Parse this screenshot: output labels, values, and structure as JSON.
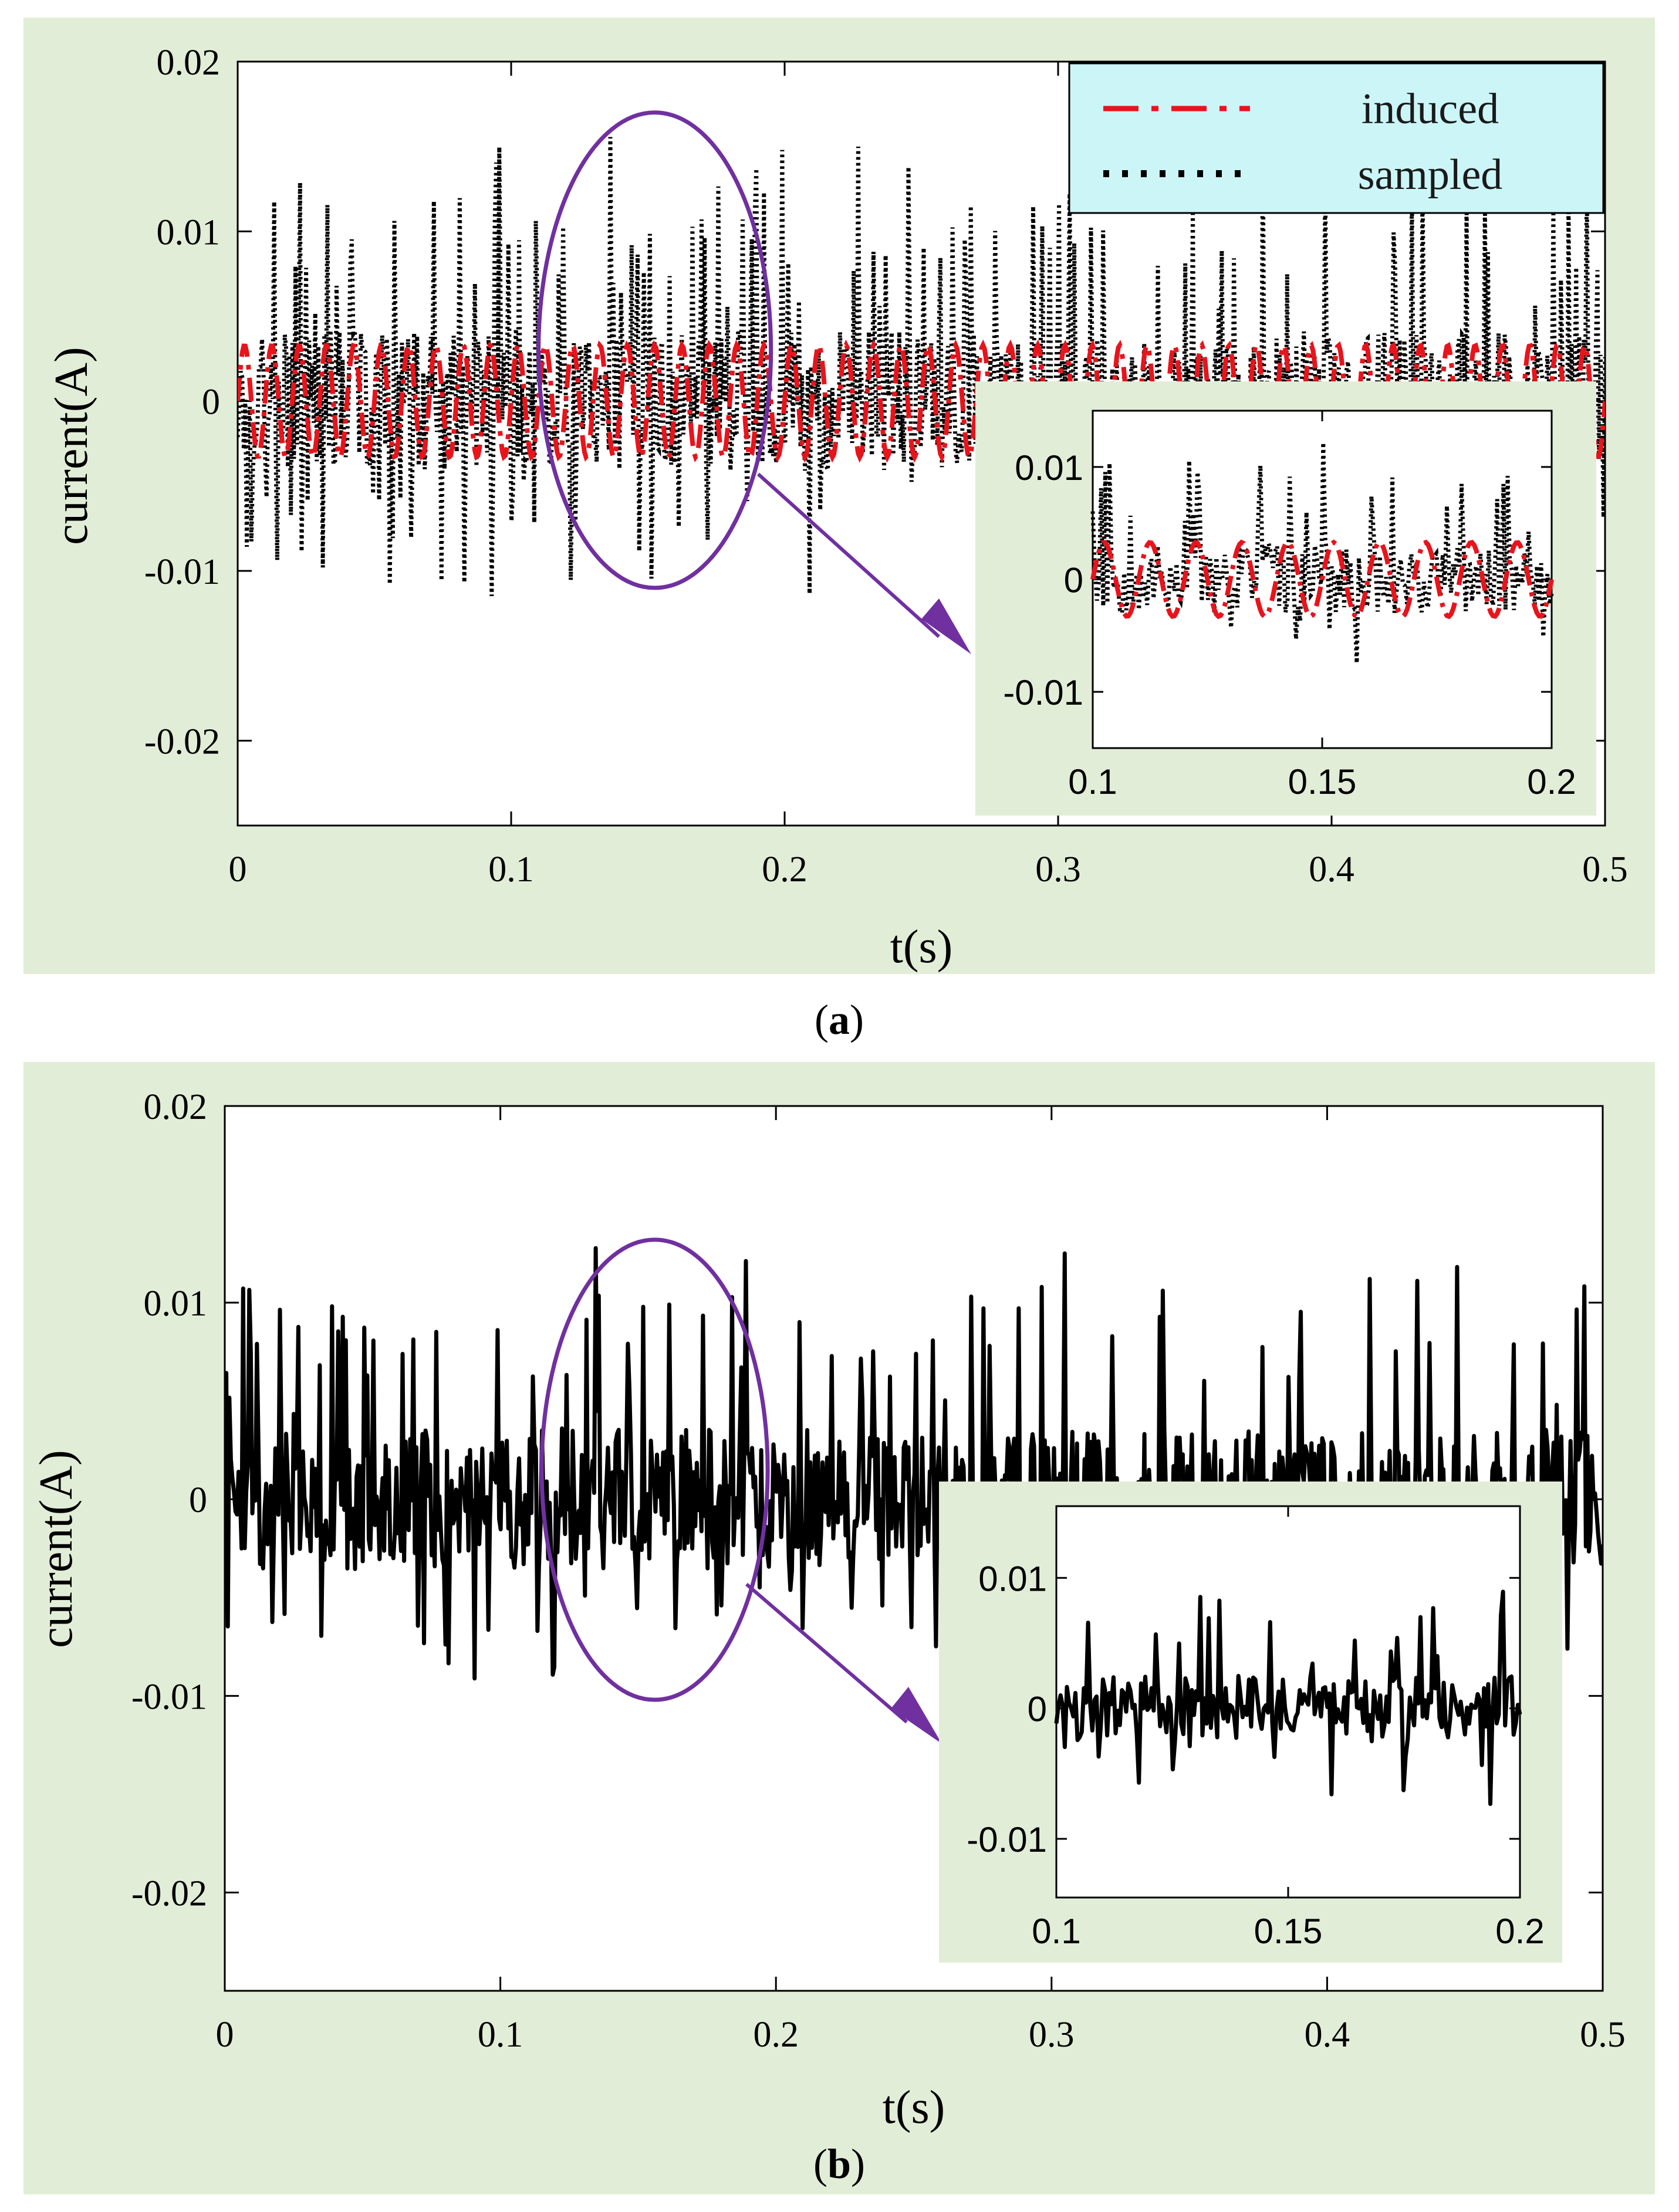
{
  "chart_data": [
    {
      "id": "a",
      "type": "line",
      "caption_letter": "a",
      "caption_open": "(",
      "caption_close": ")",
      "xlabel": "t(s)",
      "ylabel": "current(A)",
      "xlim": [
        0,
        0.5
      ],
      "ylim": [
        -0.025,
        0.02
      ],
      "xticks": [
        {
          "value": 0,
          "label": "0"
        },
        {
          "value": 0.1,
          "label": "0.1"
        },
        {
          "value": 0.2,
          "label": "0.2"
        },
        {
          "value": 0.3,
          "label": "0.3"
        },
        {
          "value": 0.4,
          "label": "0.4"
        },
        {
          "value": 0.5,
          "label": "0.5"
        }
      ],
      "yticks": [
        {
          "value": 0.02,
          "label": "0.02"
        },
        {
          "value": 0.01,
          "label": "0.01"
        },
        {
          "value": 0,
          "label": "0"
        },
        {
          "value": -0.01,
          "label": "-0.01"
        },
        {
          "value": -0.02,
          "label": "-0.02"
        }
      ],
      "legend": {
        "placement": "top-right",
        "entries": [
          {
            "label": "induced",
            "color": "#e8141c",
            "style": "dash-dot"
          },
          {
            "label": "sampled",
            "color": "#000000",
            "style": "dotted"
          }
        ]
      },
      "series": [
        {
          "name": "induced",
          "color": "#e8141c",
          "style": "dash-dot",
          "model": "sinusoid",
          "frequency_hz": 100,
          "amplitude": 0.0033
        },
        {
          "name": "sampled",
          "color": "#000000",
          "style": "dotted",
          "model": "noisy signal",
          "range": [
            -0.011,
            0.014
          ]
        }
      ],
      "highlight": {
        "shape": "ellipse",
        "x_range": [
          0.11,
          0.195
        ],
        "y_range": [
          -0.011,
          0.017
        ],
        "color": "#7030a0"
      },
      "inset": {
        "xlim": [
          0.1,
          0.2
        ],
        "ylim": [
          -0.015,
          0.015
        ],
        "xticks": [
          {
            "value": 0.1,
            "label": "0.1"
          },
          {
            "value": 0.15,
            "label": "0.15"
          },
          {
            "value": 0.2,
            "label": "0.2"
          }
        ],
        "yticks": [
          {
            "value": 0.01,
            "label": "0.01"
          },
          {
            "value": 0,
            "label": "0"
          },
          {
            "value": -0.01,
            "label": "-0.01"
          }
        ]
      },
      "background_color": "#e2edd7",
      "legend_color": "#ccf5f8"
    },
    {
      "id": "b",
      "type": "line",
      "caption_letter": "b",
      "caption_open": "(",
      "caption_close": ")",
      "xlabel": "t(s)",
      "ylabel": "current(A)",
      "xlim": [
        0,
        0.5
      ],
      "ylim": [
        -0.025,
        0.02
      ],
      "xticks": [
        {
          "value": 0,
          "label": "0"
        },
        {
          "value": 0.1,
          "label": "0.1"
        },
        {
          "value": 0.2,
          "label": "0.2"
        },
        {
          "value": 0.3,
          "label": "0.3"
        },
        {
          "value": 0.4,
          "label": "0.4"
        },
        {
          "value": 0.5,
          "label": "0.5"
        }
      ],
      "yticks": [
        {
          "value": 0.02,
          "label": "0.02"
        },
        {
          "value": 0.01,
          "label": "0.01"
        },
        {
          "value": 0,
          "label": "0"
        },
        {
          "value": -0.01,
          "label": "-0.01"
        },
        {
          "value": -0.02,
          "label": "-0.02"
        }
      ],
      "series": [
        {
          "name": "current",
          "color": "#000000",
          "style": "solid",
          "model": "noisy signal",
          "range": [
            -0.0098,
            0.0148
          ]
        }
      ],
      "highlight": {
        "shape": "ellipse",
        "x_range": [
          0.115,
          0.197
        ],
        "y_range": [
          -0.0102,
          0.0132
        ],
        "color": "#7030a0"
      },
      "inset": {
        "xlim": [
          0.1,
          0.2
        ],
        "ylim": [
          -0.0145,
          0.0155
        ],
        "xticks": [
          {
            "value": 0.1,
            "label": "0.1"
          },
          {
            "value": 0.15,
            "label": "0.15"
          },
          {
            "value": 0.2,
            "label": "0.2"
          }
        ],
        "yticks": [
          {
            "value": 0.01,
            "label": "0.01"
          },
          {
            "value": 0,
            "label": "0"
          },
          {
            "value": -0.01,
            "label": "-0.01"
          }
        ]
      },
      "background_color": "#e2edd7"
    }
  ]
}
